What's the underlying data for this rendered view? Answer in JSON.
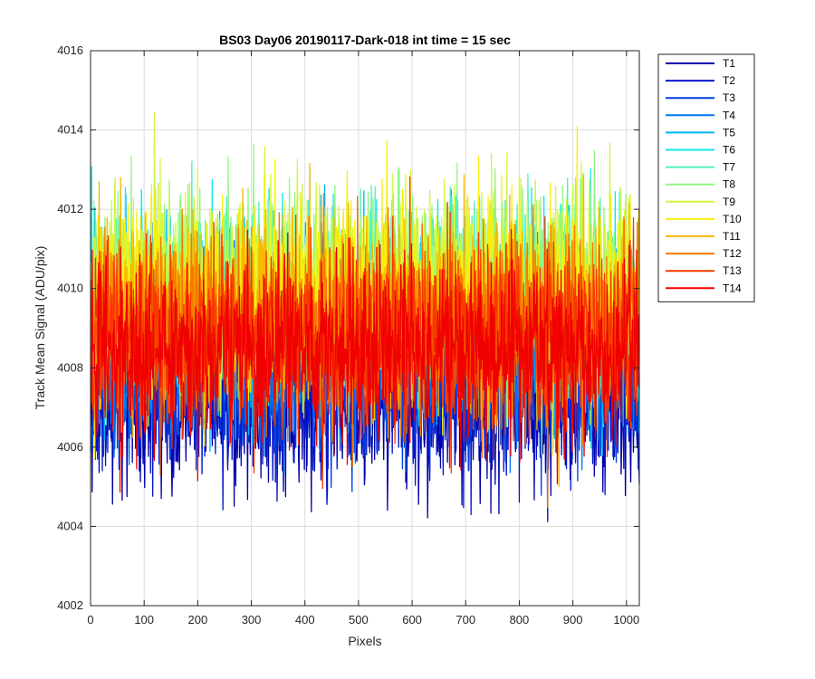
{
  "chart_data": {
    "type": "line",
    "title": "BS03 Day06 20190117-Dark-018 int time = 15 sec",
    "xlabel": "Pixels",
    "ylabel": "Track Mean Signal (ADU/pix)",
    "xlim": [
      0,
      1024
    ],
    "ylim": [
      4002,
      4016
    ],
    "xticks": [
      0,
      100,
      200,
      300,
      400,
      500,
      600,
      700,
      800,
      900,
      1000
    ],
    "yticks": [
      4002,
      4004,
      4006,
      4008,
      4010,
      4012,
      4014,
      4016
    ],
    "grid": true,
    "legend_position": "outside-top-right",
    "series": [
      {
        "name": "T1",
        "color": "#0000a8",
        "mean": 4007.2,
        "spread": 1.1
      },
      {
        "name": "T2",
        "color": "#0016c8",
        "mean": 4007.5,
        "spread": 1.1
      },
      {
        "name": "T3",
        "color": "#0040e0",
        "mean": 4008.0,
        "spread": 1.1
      },
      {
        "name": "T4",
        "color": "#0078f0",
        "mean": 4008.6,
        "spread": 1.1
      },
      {
        "name": "T5",
        "color": "#00b4f8",
        "mean": 4009.2,
        "spread": 1.2
      },
      {
        "name": "T6",
        "color": "#10e8f0",
        "mean": 4009.6,
        "spread": 1.2
      },
      {
        "name": "T7",
        "color": "#50f0c0",
        "mean": 4009.8,
        "spread": 1.2
      },
      {
        "name": "T8",
        "color": "#90f880",
        "mean": 4010.0,
        "spread": 1.2
      },
      {
        "name": "T9",
        "color": "#d0f840",
        "mean": 4010.0,
        "spread": 1.2
      },
      {
        "name": "T10",
        "color": "#f8f010",
        "mean": 4009.8,
        "spread": 1.2
      },
      {
        "name": "T11",
        "color": "#f8b800",
        "mean": 4009.4,
        "spread": 1.2
      },
      {
        "name": "T12",
        "color": "#f87800",
        "mean": 4009.0,
        "spread": 1.2
      },
      {
        "name": "T13",
        "color": "#f83800",
        "mean": 4008.7,
        "spread": 1.2
      },
      {
        "name": "T14",
        "color": "#f00000",
        "mean": 4008.5,
        "spread": 1.1
      }
    ]
  }
}
